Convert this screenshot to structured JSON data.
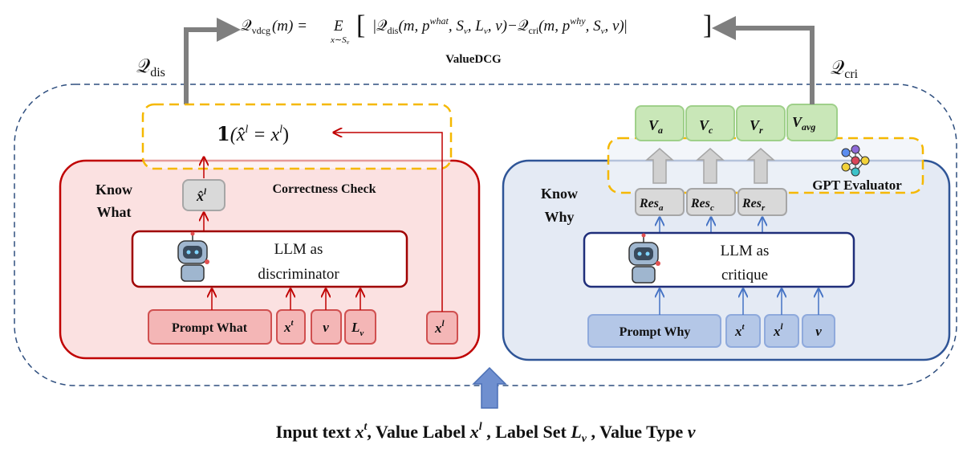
{
  "formula": {
    "lhs_symbol": "𝒬",
    "lhs_sub": "vdcg",
    "lhs_arg": "(m) =",
    "expect": "E",
    "expect_sub": "x∼S",
    "expect_sub_sub": "v",
    "dis_symbol": "𝒬",
    "dis_sub": "dis",
    "dis_args_1": "(m, p",
    "dis_sup": "what",
    "dis_args_2": ", S",
    "dis_args_3": "v",
    "dis_args_4": ", L",
    "dis_args_5": "v",
    "dis_args_6": ", v)−",
    "cri_symbol": "𝒬",
    "cri_sub": "cri",
    "cri_args_1": "(m, p",
    "cri_sup": "why",
    "cri_args_2": ", S",
    "cri_args_3": "v",
    "cri_args_4": ", v)",
    "name": "ValueDCG"
  },
  "q_dis": {
    "symbol": "𝒬",
    "sub": "dis"
  },
  "q_cri": {
    "symbol": "𝒬",
    "sub": "cri"
  },
  "indicator": {
    "one": "𝟏",
    "lhs": "(x̂",
    "sup1": "l",
    "mid": " = x",
    "sup2": "l",
    "rhs": ")"
  },
  "know_what": {
    "title_line1": "Know",
    "title_line2": "What",
    "pred_label": "x̂",
    "pred_sup": "l",
    "correctness": "Correctness Check",
    "llm_line1": "LLM as",
    "llm_line2": "discriminator",
    "inputs": [
      {
        "base": "Prompt What",
        "sup": "",
        "sub": ""
      },
      {
        "base": "x",
        "sup": "t",
        "sub": ""
      },
      {
        "base": "v",
        "sup": "",
        "sub": ""
      },
      {
        "base": "L",
        "sup": "",
        "sub": "v"
      }
    ],
    "label_input": {
      "base": "x",
      "sup": "l"
    }
  },
  "know_why": {
    "title_line1": "Know",
    "title_line2": "Why",
    "llm_line1": "LLM as",
    "llm_line2": "critique",
    "inputs": [
      {
        "base": "Prompt Why",
        "sup": ""
      },
      {
        "base": "x",
        "sup": "t"
      },
      {
        "base": "x",
        "sup": "l"
      },
      {
        "base": "v",
        "sup": ""
      }
    ],
    "responses": [
      {
        "base": "Res",
        "sub": "a"
      },
      {
        "base": "Res",
        "sub": "c"
      },
      {
        "base": "Res",
        "sub": "r"
      }
    ],
    "scores": [
      {
        "base": "V",
        "sub": "a"
      },
      {
        "base": "V",
        "sub": "c"
      },
      {
        "base": "V",
        "sub": "r"
      },
      {
        "base": "V",
        "sub": "avg"
      }
    ],
    "evaluator": "GPT Evaluator"
  },
  "caption": {
    "p1": "Input text ",
    "x1": "x",
    "x1sup": "t",
    "p2": ", Value Label ",
    "x2": "x",
    "x2sup": "l",
    "p3": " , Label Set ",
    "x3": "L",
    "x3sub": "v",
    "p4": " , Value Type ",
    "x4": "v"
  },
  "colors": {
    "red": "#c00000",
    "red_fill": "#fbe1e1",
    "red_box": "#f4b6b6",
    "blue": "#2f5597",
    "blue_fill": "#e4eaf4",
    "blue_box": "#b4c7e7",
    "green_fill": "#c9e7b8",
    "green_stroke": "#9fd08a",
    "yellow": "#f5b800",
    "gray": "#7f7f7f"
  }
}
